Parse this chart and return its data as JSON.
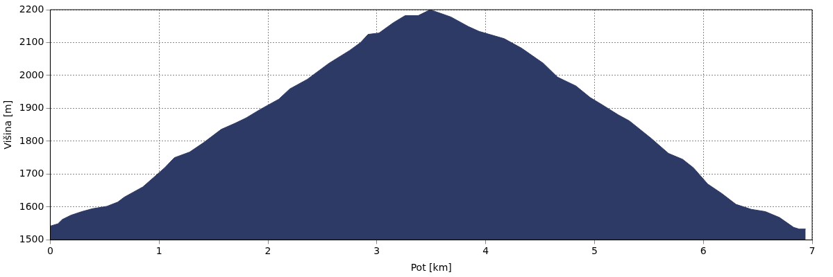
{
  "chart_data": {
    "type": "area",
    "xlabel": "Pot [km]",
    "ylabel": "Višina [m]",
    "xlim": [
      0,
      7
    ],
    "ylim": [
      1500,
      2200
    ],
    "xticks": [
      0,
      1,
      2,
      3,
      4,
      5,
      6,
      7
    ],
    "yticks": [
      1500,
      1600,
      1700,
      1800,
      1900,
      2000,
      2100,
      2200
    ],
    "grid": true,
    "legend": false,
    "x": [
      0,
      0.07,
      0.11,
      0.19,
      0.29,
      0.39,
      0.52,
      0.62,
      0.68,
      0.85,
      0.95,
      1.05,
      1.14,
      1.28,
      1.41,
      1.57,
      1.7,
      1.8,
      1.93,
      2.1,
      2.2,
      2.36,
      2.56,
      2.75,
      2.85,
      2.92,
      3.02,
      3.15,
      3.26,
      3.38,
      3.49,
      3.68,
      3.84,
      3.94,
      4.17,
      4.33,
      4.53,
      4.66,
      4.83,
      4.96,
      5.06,
      5.22,
      5.32,
      5.52,
      5.68,
      5.81,
      5.91,
      6.04,
      6.17,
      6.3,
      6.44,
      6.57,
      6.7,
      6.83,
      6.88,
      6.94
    ],
    "series": [
      {
        "color": "#2d3a66",
        "values": [
          1542,
          1549,
          1562,
          1575,
          1586,
          1595,
          1602,
          1615,
          1630,
          1661,
          1690,
          1719,
          1750,
          1767,
          1796,
          1836,
          1855,
          1871,
          1897,
          1928,
          1959,
          1988,
          2037,
          2076,
          2100,
          2125,
          2129,
          2160,
          2182,
          2182,
          2200,
          2178,
          2149,
          2134,
          2112,
          2083,
          2037,
          1995,
          1968,
          1933,
          1913,
          1880,
          1862,
          1809,
          1763,
          1745,
          1719,
          1670,
          1641,
          1608,
          1593,
          1586,
          1568,
          1538,
          1533,
          1533
        ]
      }
    ]
  }
}
